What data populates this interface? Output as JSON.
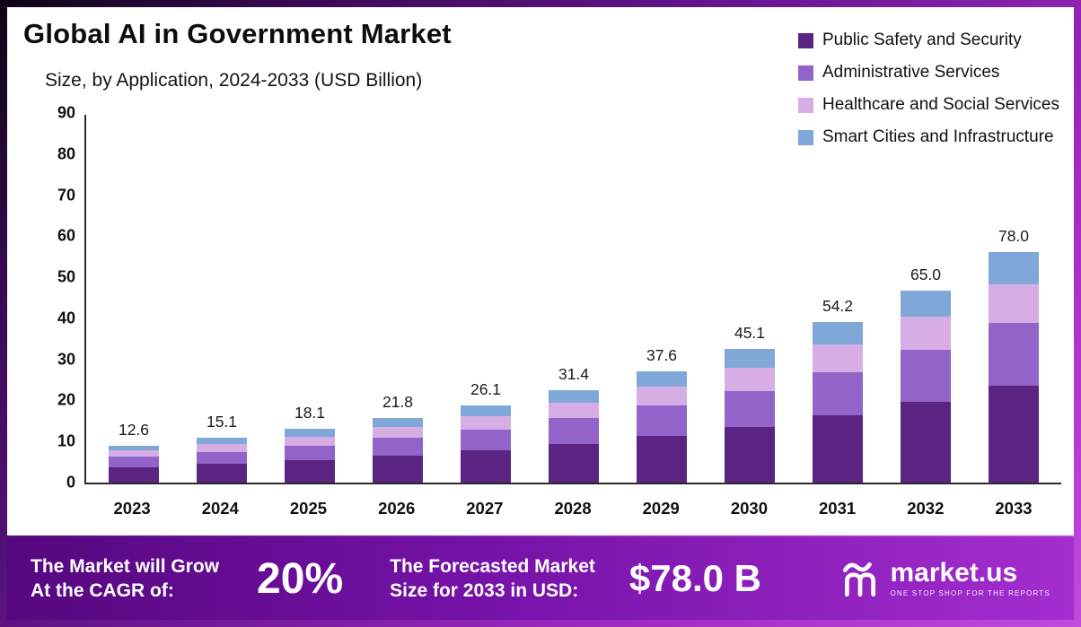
{
  "header": {
    "title": "Global AI in Government Market",
    "subtitle": "Size, by Application, 2024-2033 (USD Billion)"
  },
  "legend": {
    "items": [
      {
        "label": "Public Safety and Security",
        "color": "#5b2382"
      },
      {
        "label": "Administrative Services",
        "color": "#9263c9"
      },
      {
        "label": "Healthcare and Social Services",
        "color": "#d6aee5"
      },
      {
        "label": "Smart Cities and Infrastructure",
        "color": "#7fa8d9"
      }
    ]
  },
  "chart_data": {
    "type": "bar",
    "stacked": true,
    "title": "Global AI in Government Market Size, by Application, 2024-2033 (USD Billion)",
    "categories": [
      "2023",
      "2024",
      "2025",
      "2026",
      "2027",
      "2028",
      "2029",
      "2030",
      "2031",
      "2032",
      "2033"
    ],
    "totals": [
      12.6,
      15.1,
      18.1,
      21.8,
      26.1,
      31.4,
      37.6,
      45.1,
      54.2,
      65.0,
      78.0
    ],
    "series": [
      {
        "name": "Public Safety and Security",
        "color": "#5b2382",
        "values": [
          5.3,
          6.3,
          7.6,
          9.2,
          11.0,
          13.2,
          15.8,
          18.9,
          22.8,
          27.3,
          32.8
        ]
      },
      {
        "name": "Administrative Services",
        "color": "#9263c9",
        "values": [
          3.4,
          4.1,
          4.9,
          5.9,
          7.0,
          8.5,
          10.2,
          12.2,
          14.6,
          17.6,
          21.1
        ]
      },
      {
        "name": "Healthcare and Social Services",
        "color": "#d6aee5",
        "values": [
          2.1,
          2.6,
          3.1,
          3.7,
          4.4,
          5.3,
          6.4,
          7.7,
          9.2,
          11.1,
          13.3
        ]
      },
      {
        "name": "Smart Cities and Infrastructure",
        "color": "#7fa8d9",
        "values": [
          1.8,
          2.1,
          2.5,
          3.0,
          3.7,
          4.4,
          5.2,
          6.3,
          7.6,
          9.0,
          10.8
        ]
      }
    ],
    "xlabel": "",
    "ylabel": "",
    "ylim": [
      0,
      90
    ],
    "yticks": [
      0,
      10,
      20,
      30,
      40,
      50,
      60,
      70,
      80,
      90
    ],
    "grid": false,
    "legend_position": "top-right",
    "bar_display_scale": 0.72
  },
  "banner": {
    "cagr_label_line1": "The Market will Grow",
    "cagr_label_line2": "At the CAGR of:",
    "cagr_value": "20%",
    "forecast_label_line1": "The Forecasted Market",
    "forecast_label_line2": "Size for 2033 in USD:",
    "forecast_value": "$78.0 B",
    "brand_name": "market.us",
    "brand_tagline": "ONE STOP SHOP FOR THE REPORTS"
  }
}
